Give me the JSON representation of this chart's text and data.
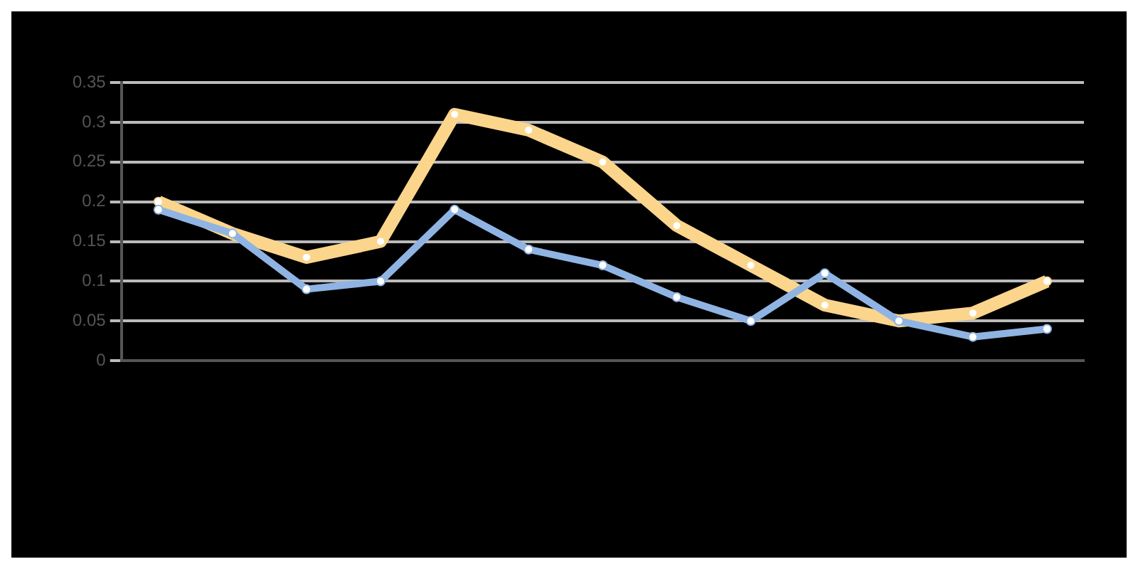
{
  "chart_data": {
    "type": "line",
    "categories": [
      null,
      null,
      null,
      null,
      null,
      null,
      null,
      null,
      null,
      null,
      null,
      null,
      null
    ],
    "series": [
      {
        "color": "#8fb4e3",
        "values": [
          0.19,
          0.16,
          0.09,
          0.1,
          0.19,
          0.14,
          0.12,
          0.08,
          0.05,
          0.11,
          0.05,
          0.03,
          0.04
        ]
      },
      {
        "color": "#fcd58d",
        "values": [
          0.2,
          0.16,
          0.13,
          0.15,
          0.31,
          0.29,
          0.25,
          0.17,
          0.12,
          0.07,
          0.05,
          0.06,
          0.1
        ]
      }
    ],
    "ylim": [
      0,
      0.35
    ],
    "yticks": [
      0,
      0.05,
      0.1,
      0.15,
      0.2,
      0.25,
      0.3,
      0.35
    ],
    "grid": "y",
    "marker": "circle",
    "line_style": "solid"
  }
}
